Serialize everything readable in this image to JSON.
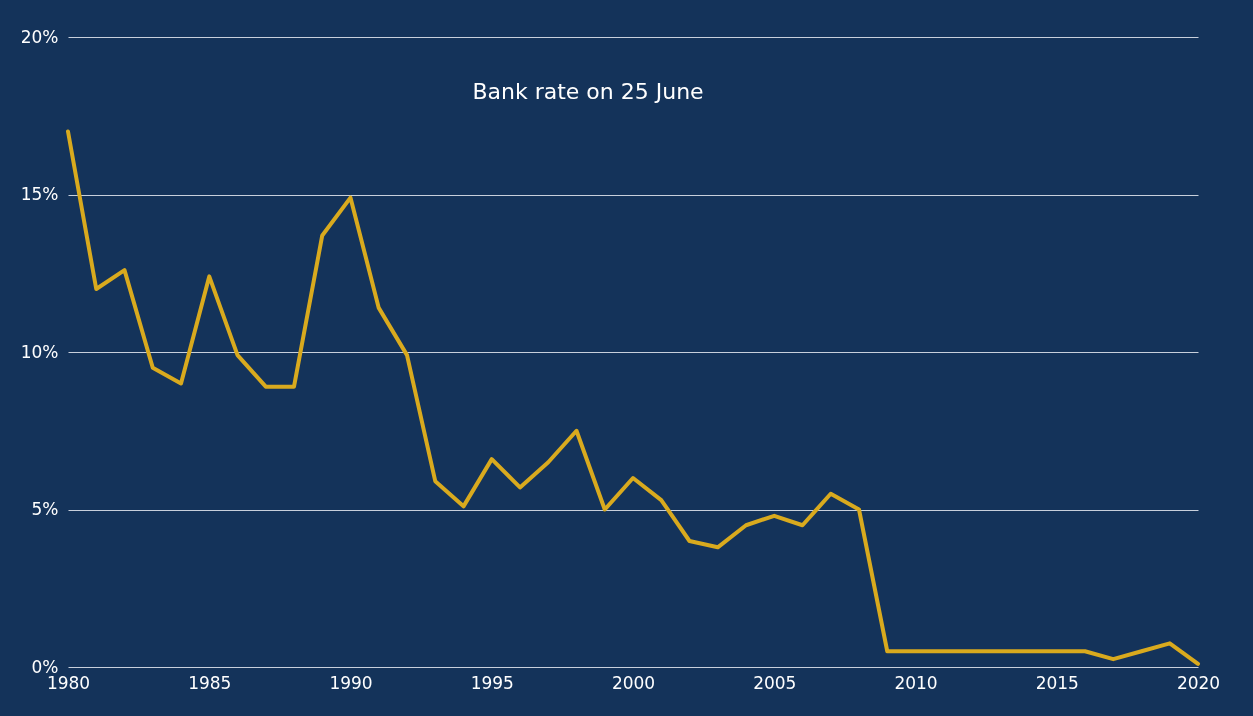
{
  "chart_data": {
    "type": "line",
    "title": "Bank rate on 25 June",
    "x": [
      1980,
      1981,
      1982,
      1983,
      1984,
      1985,
      1986,
      1987,
      1988,
      1989,
      1990,
      1991,
      1992,
      1993,
      1994,
      1995,
      1996,
      1997,
      1998,
      1999,
      2000,
      2001,
      2002,
      2003,
      2004,
      2005,
      2006,
      2007,
      2008,
      2009,
      2010,
      2011,
      2012,
      2013,
      2014,
      2015,
      2016,
      2017,
      2018,
      2019,
      2020
    ],
    "series": [
      {
        "color": "#d9aa1e",
        "values": [
          17.0,
          12.0,
          12.6,
          9.5,
          9.0,
          12.4,
          9.9,
          8.9,
          8.9,
          13.7,
          14.9,
          11.4,
          9.9,
          5.9,
          5.1,
          6.6,
          5.7,
          6.5,
          7.5,
          5.0,
          6.0,
          5.3,
          4.0,
          3.8,
          4.5,
          4.8,
          4.5,
          5.5,
          5.0,
          0.5,
          0.5,
          0.5,
          0.5,
          0.5,
          0.5,
          0.5,
          0.5,
          0.25,
          0.5,
          0.75,
          0.1
        ]
      }
    ],
    "xlim": [
      1980,
      2020
    ],
    "xticks": [
      1980,
      1985,
      1990,
      1995,
      2000,
      2005,
      2010,
      2015,
      2020
    ],
    "ylim": [
      0,
      20
    ],
    "yticks": [
      {
        "value": 0,
        "label": "0%"
      },
      {
        "value": 5,
        "label": "5%"
      },
      {
        "value": 10,
        "label": "10%"
      },
      {
        "value": 15,
        "label": "15%"
      },
      {
        "value": 20,
        "label": "20%"
      }
    ],
    "grid": "y",
    "marker": "none",
    "line_style": "solid"
  }
}
